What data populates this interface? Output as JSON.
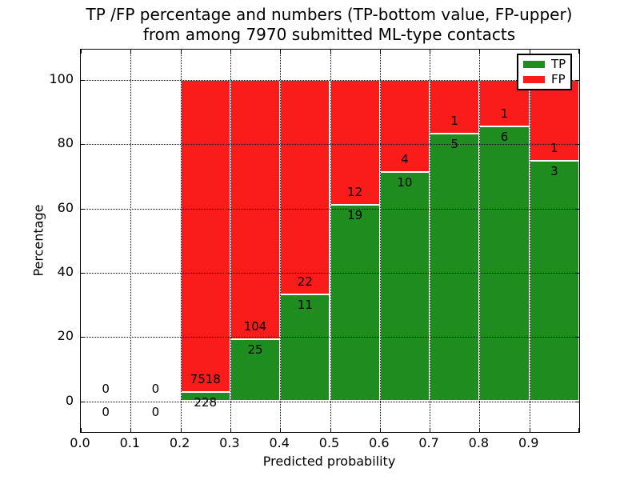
{
  "chart_data": {
    "type": "bar",
    "stacked": true,
    "title": "TP /FP percentage and numbers (TP-bottom value, FP-upper)",
    "subtitle": "from among 7970 submitted ML-type contacts",
    "total_submitted": 7970,
    "xlabel": "Predicted probability",
    "ylabel": "Percentage",
    "x_tick_labels": [
      "0.0",
      "0.1",
      "0.2",
      "0.3",
      "0.4",
      "0.5",
      "0.6",
      "0.7",
      "0.8",
      "0.9"
    ],
    "x_tick_values": [
      0.0,
      0.1,
      0.2,
      0.3,
      0.4,
      0.5,
      0.6,
      0.7,
      0.8,
      0.9
    ],
    "y_tick_labels": [
      "0",
      "20",
      "40",
      "60",
      "80",
      "100"
    ],
    "y_tick_values": [
      0,
      20,
      40,
      60,
      80,
      100
    ],
    "xlim": [
      0.0,
      1.0
    ],
    "ylim": [
      -10,
      110
    ],
    "grid": "dotted, drawn above bars",
    "bar_edge_color": "#ffffff",
    "colors": {
      "tp": "#1e8c1e",
      "fp": "#fa1b1b"
    },
    "legend": {
      "position": "upper right",
      "items": [
        {
          "label": "TP",
          "color": "#1e8c1e"
        },
        {
          "label": "FP",
          "color": "#fa1b1b"
        }
      ]
    },
    "bins": [
      {
        "range": [
          0.0,
          0.1
        ],
        "tp_count": 0,
        "fp_count": 0,
        "tp_pct": 0,
        "fp_pct": 0
      },
      {
        "range": [
          0.1,
          0.2
        ],
        "tp_count": 0,
        "fp_count": 0,
        "tp_pct": 0,
        "fp_pct": 0
      },
      {
        "range": [
          0.2,
          0.3
        ],
        "tp_count": 228,
        "fp_count": 7518,
        "tp_pct": 2.94,
        "fp_pct": 97.06
      },
      {
        "range": [
          0.3,
          0.4
        ],
        "tp_count": 25,
        "fp_count": 104,
        "tp_pct": 19.38,
        "fp_pct": 80.62
      },
      {
        "range": [
          0.4,
          0.5
        ],
        "tp_count": 11,
        "fp_count": 22,
        "tp_pct": 33.33,
        "fp_pct": 66.67
      },
      {
        "range": [
          0.5,
          0.6
        ],
        "tp_count": 19,
        "fp_count": 12,
        "tp_pct": 61.29,
        "fp_pct": 38.71
      },
      {
        "range": [
          0.6,
          0.7
        ],
        "tp_count": 10,
        "fp_count": 4,
        "tp_pct": 71.43,
        "fp_pct": 28.57
      },
      {
        "range": [
          0.7,
          0.8
        ],
        "tp_count": 5,
        "fp_count": 1,
        "tp_pct": 83.33,
        "fp_pct": 16.67
      },
      {
        "range": [
          0.8,
          0.9
        ],
        "tp_count": 6,
        "fp_count": 1,
        "tp_pct": 85.71,
        "fp_pct": 14.29
      },
      {
        "range": [
          0.9,
          1.0
        ],
        "tp_count": 3,
        "fp_count": 1,
        "tp_pct": 75.0,
        "fp_pct": 25.0
      }
    ]
  }
}
